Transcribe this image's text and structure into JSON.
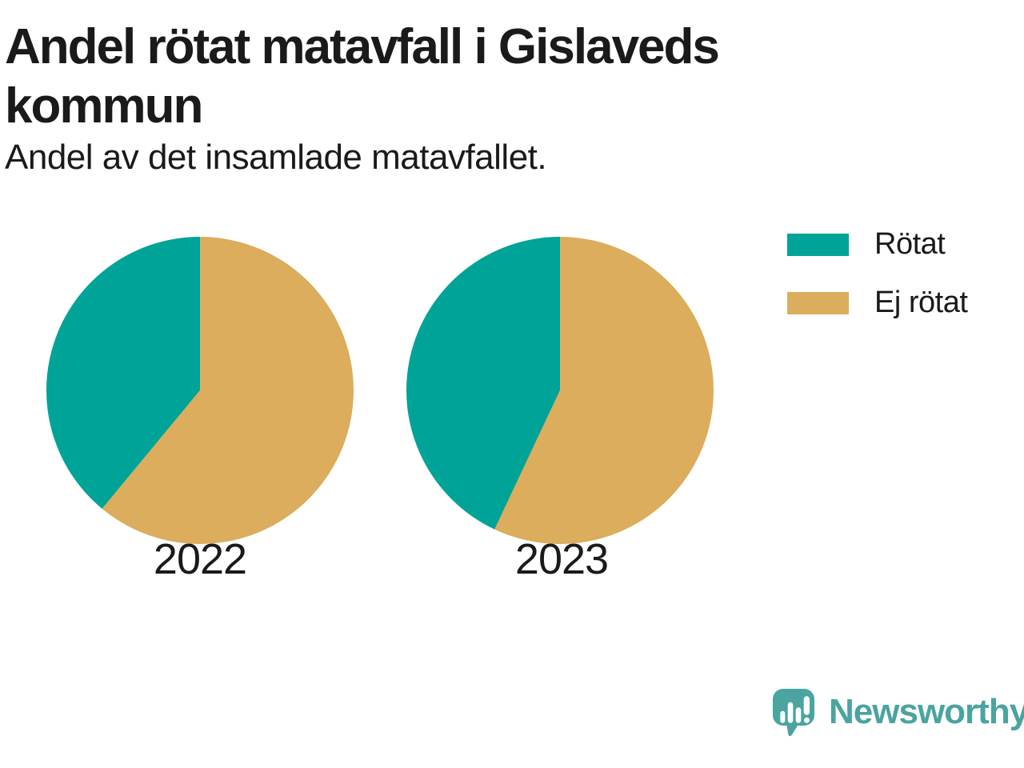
{
  "title": "Andel rötat matavfall i Gislaveds\nkommun",
  "subtitle": "Andel av det insamlade matavfallet.",
  "legend": [
    {
      "label": "Rötat",
      "color": "#00A398"
    },
    {
      "label": "Ej rötat",
      "color": "#DBAD5C"
    }
  ],
  "chart_data": {
    "type": "pie",
    "unit": "percent",
    "start_angle": "top",
    "note": "Rötat slice drawn counterclockwise from 12 o'clock (left side), Ej rötat fills clockwise side",
    "legend_position": "top-right",
    "pies": [
      {
        "label": "2022",
        "slices": [
          {
            "name": "Rötat",
            "value": 39
          },
          {
            "name": "Ej rötat",
            "value": 61
          }
        ]
      },
      {
        "label": "2023",
        "slices": [
          {
            "name": "Rötat",
            "value": 43
          },
          {
            "name": "Ej rötat",
            "value": 57
          }
        ]
      }
    ]
  },
  "branding": {
    "logo_text": "Newsworthy",
    "logo_color": "#4AA49F",
    "logo_icon": "speech-bubble-bar-chart-icon"
  }
}
